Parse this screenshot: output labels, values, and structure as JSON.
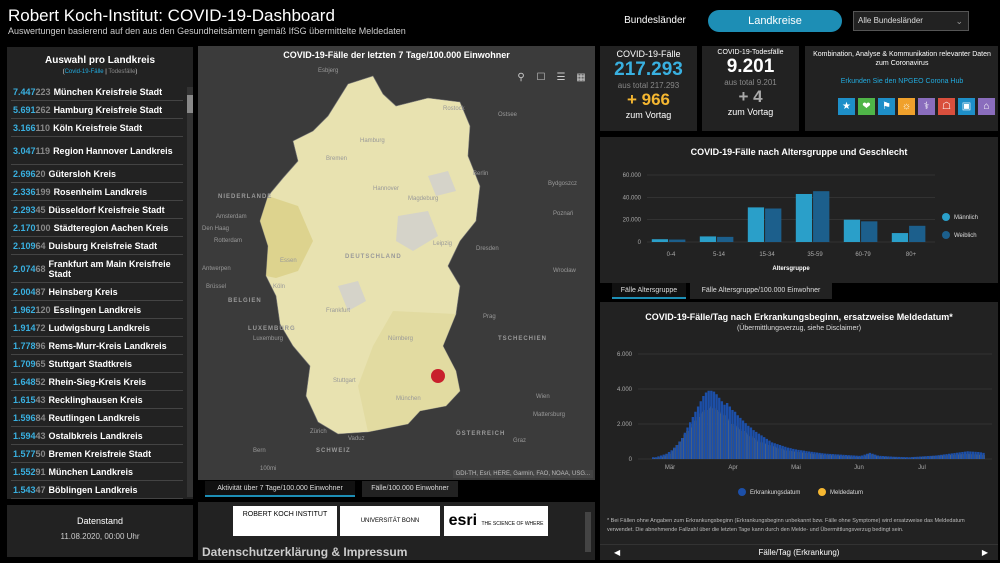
{
  "header": {
    "title": "Robert Koch-Institut: COVID-19-Dashboard",
    "subtitle": "Auswertungen basierend auf den aus den Gesundheitsämtern gemäß IfSG übermittelte Meldedaten",
    "btn_bundeslaender": "Bundesländer",
    "btn_landkreise": "Landkreise",
    "select_value": "Alle Bundesländer"
  },
  "list": {
    "title": "Auswahl pro Landkreis",
    "sub_cases": "Covid-19-Fälle",
    "sub_deaths": "Todesfälle",
    "rows": [
      {
        "cases": "7.447",
        "deaths": "223",
        "name": "München Kreisfreie Stadt"
      },
      {
        "cases": "5.691",
        "deaths": "262",
        "name": "Hamburg Kreisfreie Stadt"
      },
      {
        "cases": "3.166",
        "deaths": "110",
        "name": "Köln Kreisfreie Stadt"
      },
      {
        "cases": "3.047",
        "deaths": "119",
        "name": "Region Hannover Landkreis"
      },
      {
        "cases": "2.696",
        "deaths": "20",
        "name": "Gütersloh Kreis"
      },
      {
        "cases": "2.336",
        "deaths": "199",
        "name": "Rosenheim Landkreis"
      },
      {
        "cases": "2.293",
        "deaths": "45",
        "name": "Düsseldorf Kreisfreie Stadt"
      },
      {
        "cases": "2.170",
        "deaths": "100",
        "name": "Städteregion Aachen Kreis"
      },
      {
        "cases": "2.109",
        "deaths": "64",
        "name": "Duisburg Kreisfreie Stadt"
      },
      {
        "cases": "2.074",
        "deaths": "68",
        "name": "Frankfurt am Main Kreisfreie Stadt"
      },
      {
        "cases": "2.004",
        "deaths": "87",
        "name": "Heinsberg Kreis"
      },
      {
        "cases": "1.962",
        "deaths": "120",
        "name": "Esslingen Landkreis"
      },
      {
        "cases": "1.914",
        "deaths": "72",
        "name": "Ludwigsburg Landkreis"
      },
      {
        "cases": "1.778",
        "deaths": "96",
        "name": "Rems-Murr-Kreis Landkreis"
      },
      {
        "cases": "1.709",
        "deaths": "65",
        "name": "Stuttgart Stadtkreis"
      },
      {
        "cases": "1.648",
        "deaths": "52",
        "name": "Rhein-Sieg-Kreis Kreis"
      },
      {
        "cases": "1.615",
        "deaths": "43",
        "name": "Recklinghausen Kreis"
      },
      {
        "cases": "1.596",
        "deaths": "84",
        "name": "Reutlingen Landkreis"
      },
      {
        "cases": "1.594",
        "deaths": "43",
        "name": "Ostalbkreis Landkreis"
      },
      {
        "cases": "1.577",
        "deaths": "50",
        "name": "Bremen Kreisfreie Stadt"
      },
      {
        "cases": "1.552",
        "deaths": "91",
        "name": "München Landkreis"
      },
      {
        "cases": "1.543",
        "deaths": "47",
        "name": "Böblingen Landkreis"
      }
    ]
  },
  "datenstand": {
    "title": "Datenstand",
    "value": "11.08.2020, 00:00 Uhr"
  },
  "map": {
    "title": "COVID-19-Fälle der letzten 7 Tage/100.000 Einwohner",
    "labels": [
      "Esbjerg",
      "Ostsee",
      "Rostock",
      "Hamburg",
      "Bremen",
      "Berlin",
      "Hannover",
      "Bydgoszcz",
      "NIEDERLANDE",
      "Amsterdam",
      "Den Haag",
      "Rotterdam",
      "Poznań",
      "Magdeburg",
      "Leipzig",
      "DEUTSCHLAND",
      "Dresden",
      "Essen",
      "Köln",
      "Wrocław",
      "Antwerpen",
      "Brüssel",
      "BELGIEN",
      "LUXEMBURG",
      "Luxemburg",
      "Frankfurt",
      "Prag",
      "TSCHECHIEN",
      "Nürnberg",
      "Stuttgart",
      "München",
      "Wien",
      "Mattersburg",
      "Zürich",
      "Vaduz",
      "SCHWEIZ",
      "Bern",
      "ÖSTERREICH",
      "Graz"
    ],
    "scale": "100mi",
    "attribution": "GDI-TH, Esri, HERE, Garmin, FAO, NOAA, USG...",
    "tab1": "Aktivität über 7 Tage/100.000 Einwohner",
    "tab2": "Fälle/100.000 Einwohner"
  },
  "logos": {
    "rki": "ROBERT KOCH INSTITUT",
    "bonn": "UNIVERSITÄT BONN",
    "esri": "esri",
    "esri_tag": "THE SCIENCE OF WHERE",
    "impressum": "Datenschutzerklärung & Impressum"
  },
  "stats": {
    "cases_label": "COVID-19-Fälle",
    "cases": "217.293",
    "cases_total": "aus total 217.293",
    "cases_delta": "+ 966",
    "cases_vt": "zum Vortag",
    "deaths_label": "COVID-19-Todesfälle",
    "deaths": "9.201",
    "deaths_total": "aus total 9.201",
    "deaths_delta": "+ 4",
    "deaths_vt": "zum Vortag"
  },
  "hub": {
    "text": "Kombination, Analyse & Kommunikation relevanter Daten zum Coronavirus",
    "link": "Erkunden Sie den NPGEO Corona Hub",
    "icon_colors": [
      "#1e8fc8",
      "#4fb548",
      "#1e8fc8",
      "#f0a12c",
      "#8a6dbd",
      "#d94f3d",
      "#1e8fc8",
      "#8a6dbd"
    ]
  },
  "chart_data": [
    {
      "type": "bar",
      "title": "COVID-19-Fälle nach Altersgruppe und Geschlecht",
      "xlabel": "Altersgruppe",
      "ylabel": "",
      "categories": [
        "0-4",
        "5-14",
        "15-34",
        "35-59",
        "60-79",
        "80+"
      ],
      "ylim": [
        0,
        60000
      ],
      "yticks": [
        "0",
        "20.000",
        "40.000",
        "60.000"
      ],
      "legend": "right",
      "series": [
        {
          "name": "Männlich",
          "color": "#2a9fc9",
          "values": [
            2500,
            5000,
            31000,
            43000,
            20000,
            8000
          ]
        },
        {
          "name": "Weiblich",
          "color": "#1c5f8c",
          "values": [
            2200,
            4600,
            30000,
            45500,
            18500,
            14500
          ]
        }
      ],
      "tab1": "Fälle Altersgruppe",
      "tab2": "Fälle Altersgruppe/100.000 Einwohner"
    },
    {
      "type": "bar",
      "title": "COVID-19-Fälle/Tag nach Erkrankungsbeginn, ersatzweise Meldedatum*",
      "subtitle": "(Übermittlungsverzug, siehe Disclaimer)",
      "xlabel": "",
      "ylabel": "",
      "x_ticks": [
        "Mär",
        "Apr",
        "Mai",
        "Jun",
        "Jul"
      ],
      "ylim": [
        0,
        6000
      ],
      "yticks": [
        "0",
        "2.000",
        "4.000",
        "6.000"
      ],
      "legend": "bottom",
      "series": [
        {
          "name": "Erkrankungsdatum",
          "color": "#1c4fa8",
          "values": [
            100,
            100,
            150,
            200,
            250,
            300,
            400,
            500,
            650,
            800,
            1000,
            1200,
            1500,
            1800,
            2100,
            2400,
            2700,
            3000,
            3300,
            3600,
            3800,
            3900,
            3900,
            3850,
            3700,
            3500,
            3300,
            3100,
            3200,
            3000,
            2800,
            2700,
            2500,
            2350,
            2200,
            2050,
            1900,
            1800,
            1650,
            1550,
            1450,
            1350,
            1250,
            1150,
            1050,
            950,
            900,
            850,
            800,
            750,
            700,
            650,
            620,
            580,
            550,
            520,
            500,
            480,
            450,
            430,
            410,
            390,
            370,
            350,
            330,
            310,
            300,
            290,
            280,
            270,
            260,
            250,
            240,
            230,
            220,
            210,
            200,
            190,
            180,
            200,
            250,
            300,
            350,
            300,
            250,
            200,
            180,
            170,
            160,
            150,
            140,
            130,
            125,
            120,
            115,
            110,
            105,
            100,
            110,
            120,
            130,
            140,
            150,
            160,
            170,
            180,
            190,
            200,
            220,
            240,
            260,
            280,
            300,
            320,
            340,
            360,
            380,
            400,
            420,
            440,
            430,
            420,
            410,
            400,
            380,
            350
          ]
        },
        {
          "name": "Meldedatum",
          "color": "#f5b731",
          "values": [
            50,
            60,
            80,
            100,
            150,
            200,
            300,
            450,
            600,
            800,
            1000,
            1200,
            1400,
            1600,
            1800,
            2000,
            2200,
            2400,
            2600,
            2700,
            2800,
            2900,
            3000,
            2900,
            2800,
            2700,
            2600,
            2500,
            2300,
            2200,
            2000,
            1900,
            1800,
            1700,
            1600,
            1500,
            1400,
            1300,
            1200,
            1100,
            1000,
            950,
            900,
            850,
            800,
            750,
            700,
            650,
            600,
            550,
            500,
            480,
            460,
            440,
            420,
            400,
            380,
            360,
            340,
            320,
            300,
            280,
            270,
            260,
            250,
            240,
            230,
            220,
            210,
            200,
            190,
            180,
            170,
            160,
            150,
            140,
            130,
            120,
            110,
            130,
            180,
            250,
            300,
            250,
            200,
            150,
            130,
            120,
            110,
            100,
            95,
            90,
            85,
            80,
            75,
            70,
            65,
            75,
            85,
            95,
            105,
            115,
            125,
            135,
            145,
            155,
            165,
            175,
            185,
            195,
            205,
            215,
            225,
            235,
            245,
            255,
            265,
            275,
            285,
            295,
            280,
            270,
            260,
            250,
            240,
            220
          ]
        }
      ],
      "disclaimer": "* Bei Fällen ohne Angaben zum Erkrankungsbeginn (Erkrankungsbeginn unbekannt bzw. Fälle ohne Symptome) wird ersatzweise das Meldedatum verwendet. Die abnehmende Fallzahl über die letzten Tage kann durch den Melde- und Übermittlungsverzug bedingt sein.",
      "nav": "Fälle/Tag (Erkrankung)"
    }
  ]
}
